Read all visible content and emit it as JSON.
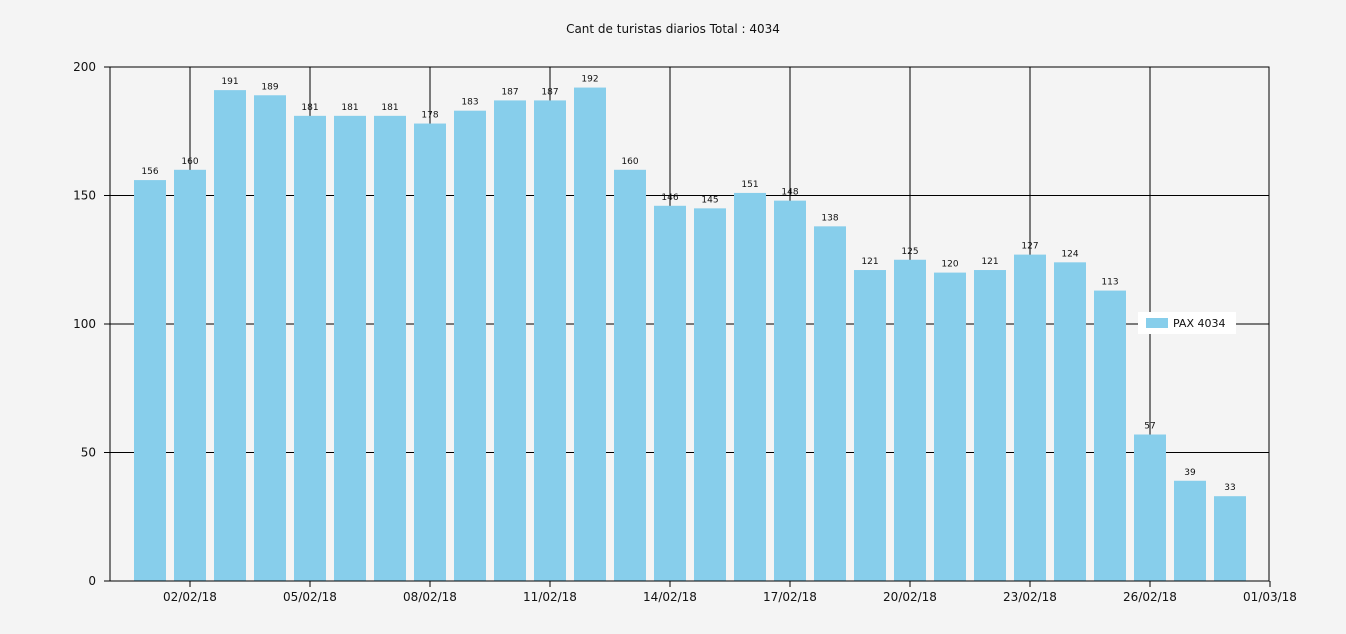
{
  "chart_data": {
    "type": "bar",
    "title": "Cant de turistas diarios Total : 4034",
    "xlabel": "",
    "ylabel": "",
    "ylim": [
      0,
      200
    ],
    "yticks": [
      0,
      50,
      100,
      150,
      200
    ],
    "grid": true,
    "legend_position": "right",
    "colors": {
      "bar": "#87ceeb",
      "background": "#f4f4f4",
      "axis": "#000000"
    },
    "x_tick_labels": [
      "02/02/18",
      "05/02/18",
      "08/02/18",
      "11/02/18",
      "14/02/18",
      "17/02/18",
      "20/02/18",
      "23/02/18",
      "26/02/18",
      "01/03/18"
    ],
    "categories": [
      "01/02/18",
      "02/02/18",
      "03/02/18",
      "04/02/18",
      "05/02/18",
      "06/02/18",
      "07/02/18",
      "08/02/18",
      "09/02/18",
      "10/02/18",
      "11/02/18",
      "12/02/18",
      "13/02/18",
      "14/02/18",
      "15/02/18",
      "16/02/18",
      "17/02/18",
      "18/02/18",
      "19/02/18",
      "20/02/18",
      "21/02/18",
      "22/02/18",
      "23/02/18",
      "24/02/18",
      "25/02/18",
      "26/02/18",
      "27/02/18",
      "28/02/18"
    ],
    "series": [
      {
        "name": "PAX 4034",
        "values": [
          156,
          160,
          191,
          189,
          181,
          181,
          181,
          178,
          183,
          187,
          187,
          192,
          160,
          146,
          145,
          151,
          148,
          138,
          121,
          125,
          120,
          121,
          127,
          124,
          113,
          57,
          39,
          33
        ]
      }
    ]
  }
}
